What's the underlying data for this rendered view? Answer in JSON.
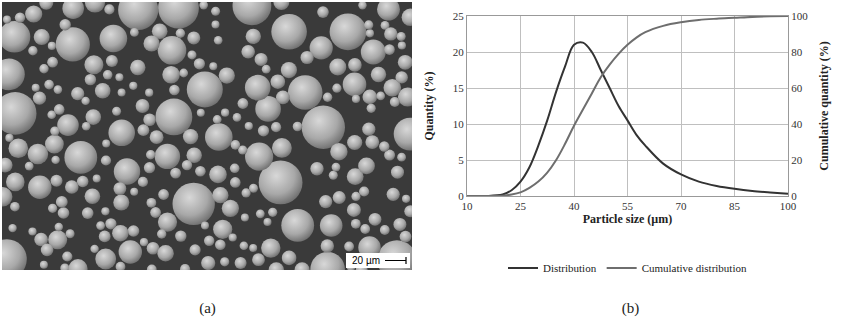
{
  "panels": {
    "a": {
      "label": "(a)",
      "scale_bar": "20 µm"
    }
  },
  "chart_data": {
    "type": "line",
    "panel_label": "(b)",
    "x_label": "Particle size (µm)",
    "y_label": "Quantity (%)",
    "y2_label": "Cumulative quantity (%)",
    "x": [
      10,
      15,
      20,
      22.5,
      25,
      27.5,
      30,
      32.5,
      35,
      37.5,
      40,
      42.5,
      45,
      47.5,
      50,
      52.5,
      55,
      57.5,
      60,
      65,
      70,
      75,
      80,
      85,
      90,
      95,
      100
    ],
    "series": [
      {
        "name": "Distribution",
        "color": "#333333",
        "values": [
          0,
          0,
          0.2,
          0.8,
          2,
          4,
          7,
          10.5,
          14.5,
          18,
          21,
          21.3,
          20,
          17.5,
          15,
          12.5,
          10.5,
          8.5,
          7,
          4.5,
          3,
          2,
          1.4,
          1,
          0.7,
          0.5,
          0.3
        ]
      },
      {
        "name": "Cumulative distribution",
        "color": "#6e6e6e",
        "axis": "y2",
        "values": [
          0,
          0,
          0.2,
          0.8,
          2,
          4.5,
          8,
          13,
          20,
          29,
          39,
          48,
          57,
          66,
          73,
          79,
          84,
          88,
          91,
          94.5,
          96.5,
          97.8,
          98.5,
          99,
          99.5,
          99.8,
          100
        ]
      }
    ],
    "xlim": [
      10,
      100
    ],
    "xticks": [
      10,
      25,
      40,
      55,
      70,
      85,
      100
    ],
    "ylim": [
      0,
      25
    ],
    "yticks": [
      0,
      5,
      10,
      15,
      20,
      25
    ],
    "y2lim": [
      0,
      100
    ],
    "y2ticks": [
      0,
      20,
      40,
      60,
      80,
      100
    ],
    "grid": true,
    "legend": "bottom",
    "line_style": "solid"
  }
}
